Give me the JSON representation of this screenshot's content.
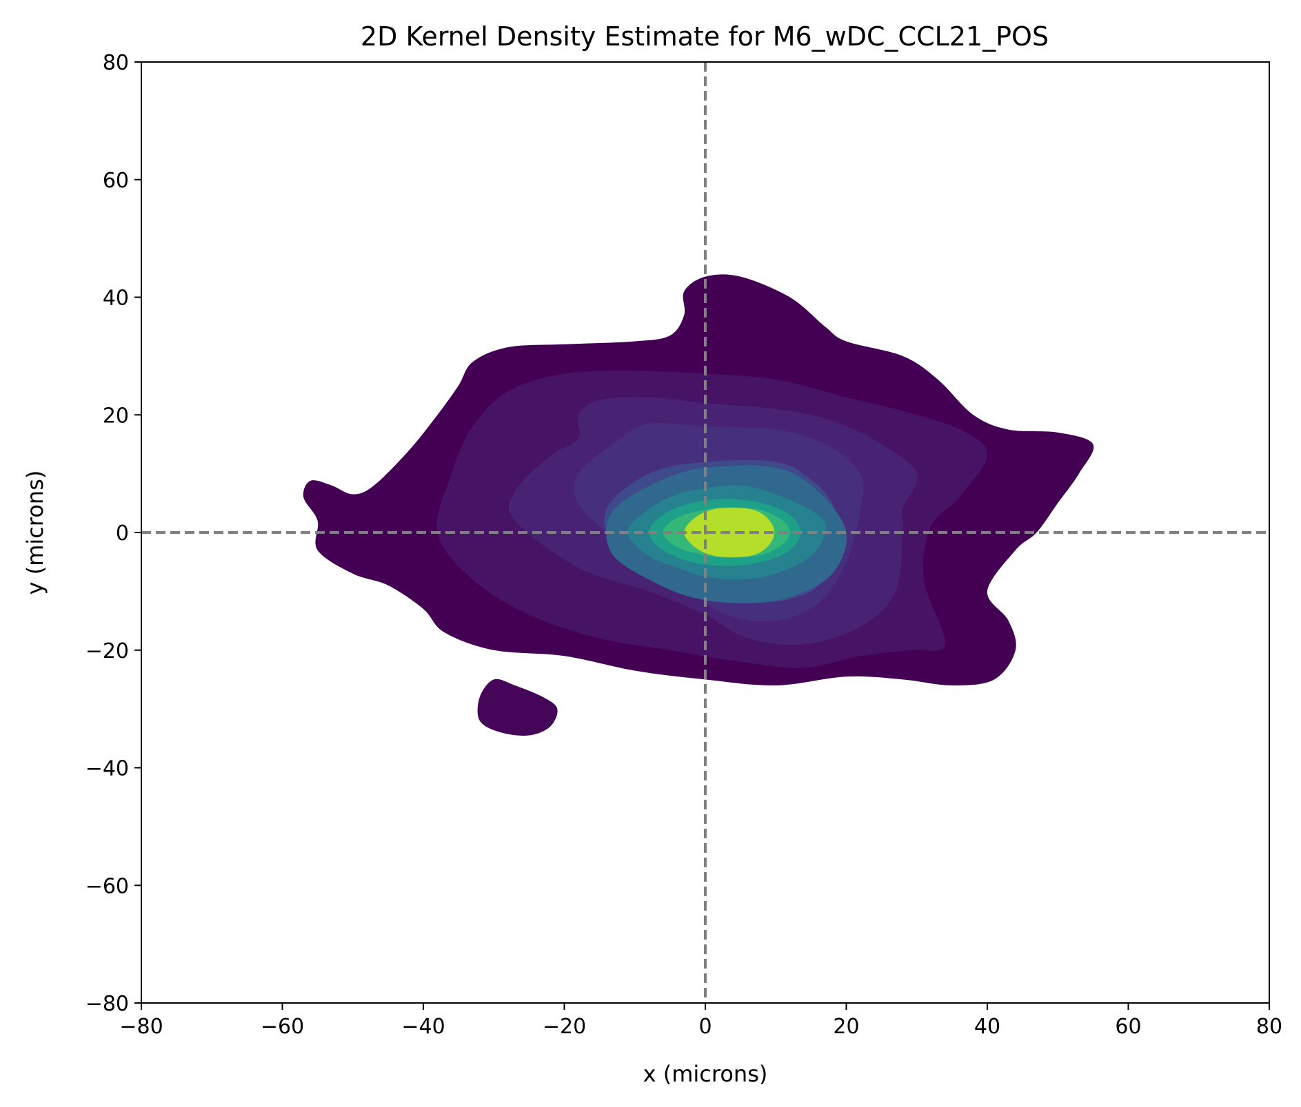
{
  "chart_data": {
    "type": "contour",
    "title": "2D Kernel Density Estimate for M6_wDC_CCL21_POS",
    "xlabel": "x (microns)",
    "ylabel": "y (microns)",
    "xlim": [
      -80,
      80
    ],
    "ylim": [
      -80,
      80
    ],
    "xticks": [
      -80,
      -60,
      -40,
      -20,
      0,
      20,
      40,
      60,
      80
    ],
    "yticks": [
      -80,
      -60,
      -40,
      -20,
      0,
      20,
      40,
      60,
      80
    ],
    "xtick_labels": [
      "−80",
      "−60",
      "−40",
      "−20",
      "0",
      "20",
      "40",
      "60",
      "80"
    ],
    "ytick_labels": [
      "−80",
      "−60",
      "−40",
      "−20",
      "0",
      "20",
      "40",
      "60",
      "80"
    ],
    "grid": false,
    "colormap": "viridis",
    "reference_lines": [
      {
        "orientation": "vertical",
        "value": 0,
        "style": "dashed",
        "color": "#808080"
      },
      {
        "orientation": "horizontal",
        "value": 0,
        "style": "dashed",
        "color": "#808080"
      }
    ],
    "levels": [
      {
        "color": "#440154",
        "points": [
          [
            -56,
            8.8
          ],
          [
            -53,
            8
          ],
          [
            -50,
            6.5
          ],
          [
            -47,
            8
          ],
          [
            -42,
            14
          ],
          [
            -38,
            20
          ],
          [
            -35,
            25
          ],
          [
            -33,
            29
          ],
          [
            -28,
            31.5
          ],
          [
            -20,
            32
          ],
          [
            -10,
            32.5
          ],
          [
            -5,
            33.5
          ],
          [
            -3,
            37
          ],
          [
            -3,
            41
          ],
          [
            0,
            43.5
          ],
          [
            5,
            43.5
          ],
          [
            12,
            40
          ],
          [
            17,
            35
          ],
          [
            20,
            32.5
          ],
          [
            28,
            30
          ],
          [
            33,
            26
          ],
          [
            38,
            20
          ],
          [
            43,
            17.5
          ],
          [
            50,
            17
          ],
          [
            55,
            15
          ],
          [
            53,
            10
          ],
          [
            50,
            5
          ],
          [
            47,
            0
          ],
          [
            44,
            -3
          ],
          [
            40,
            -10
          ],
          [
            43,
            -15
          ],
          [
            44,
            -20
          ],
          [
            41,
            -25
          ],
          [
            35,
            -26
          ],
          [
            28,
            -25
          ],
          [
            20,
            -24.5
          ],
          [
            10,
            -26
          ],
          [
            0,
            -25
          ],
          [
            -10,
            -23.5
          ],
          [
            -20,
            -21
          ],
          [
            -30,
            -20
          ],
          [
            -37,
            -17
          ],
          [
            -40,
            -13
          ],
          [
            -45,
            -9
          ],
          [
            -50,
            -7
          ],
          [
            -55,
            -3
          ],
          [
            -55,
            2
          ],
          [
            -57,
            6
          ],
          [
            -56,
            8.8
          ]
        ]
      },
      {
        "color": "#450558",
        "points": [
          [
            -30,
            -25
          ],
          [
            -27,
            -26
          ],
          [
            -23,
            -28
          ],
          [
            -21,
            -30
          ],
          [
            -22,
            -33
          ],
          [
            -25,
            -34.5
          ],
          [
            -29,
            -34
          ],
          [
            -32,
            -32
          ],
          [
            -32,
            -28
          ],
          [
            -30,
            -25
          ]
        ]
      },
      {
        "color": "#471365",
        "points": [
          [
            -38,
            0
          ],
          [
            -36,
            10
          ],
          [
            -33,
            18
          ],
          [
            -28,
            24
          ],
          [
            -20,
            27
          ],
          [
            -10,
            27.5
          ],
          [
            0,
            27
          ],
          [
            10,
            26
          ],
          [
            20,
            23
          ],
          [
            30,
            20
          ],
          [
            37,
            17
          ],
          [
            40,
            13
          ],
          [
            36,
            6
          ],
          [
            32,
            1
          ],
          [
            31,
            -8
          ],
          [
            34,
            -19
          ],
          [
            29,
            -20
          ],
          [
            22,
            -21
          ],
          [
            14,
            -23
          ],
          [
            5,
            -22
          ],
          [
            -5,
            -20
          ],
          [
            -15,
            -18
          ],
          [
            -25,
            -14
          ],
          [
            -33,
            -8
          ],
          [
            -38,
            0
          ]
        ]
      },
      {
        "color": "#482374",
        "points": [
          [
            -27,
            7
          ],
          [
            -22,
            13
          ],
          [
            -18,
            16
          ],
          [
            -18,
            20
          ],
          [
            -15,
            22.5
          ],
          [
            -8,
            23
          ],
          [
            0,
            22
          ],
          [
            10,
            21
          ],
          [
            18,
            19
          ],
          [
            25,
            15
          ],
          [
            30,
            10
          ],
          [
            28,
            4
          ],
          [
            28,
            0
          ],
          [
            27,
            -10
          ],
          [
            22,
            -16
          ],
          [
            14,
            -19
          ],
          [
            6,
            -18
          ],
          [
            0,
            -14
          ],
          [
            -8,
            -10
          ],
          [
            -18,
            -6
          ],
          [
            -27,
            2
          ],
          [
            -27,
            7
          ]
        ]
      },
      {
        "color": "#46307e",
        "points": [
          [
            -18,
            10
          ],
          [
            -12,
            16
          ],
          [
            -8,
            18.5
          ],
          [
            0,
            18
          ],
          [
            10,
            17.5
          ],
          [
            17,
            15
          ],
          [
            22,
            10
          ],
          [
            22,
            4
          ],
          [
            20,
            -5
          ],
          [
            16,
            -12
          ],
          [
            10,
            -15
          ],
          [
            3,
            -14
          ],
          [
            -2,
            -10
          ],
          [
            -8,
            -6
          ],
          [
            -14,
            0
          ],
          [
            -18,
            5
          ],
          [
            -18,
            10
          ]
        ]
      },
      {
        "color": "#3e4a89",
        "points": [
          [
            -14,
            4
          ],
          [
            -8,
            10
          ],
          [
            0,
            12
          ],
          [
            10,
            12
          ],
          [
            15,
            9
          ],
          [
            18,
            5
          ],
          [
            19,
            0
          ],
          [
            18,
            -5
          ],
          [
            15,
            -10
          ],
          [
            8,
            -12
          ],
          [
            0,
            -11
          ],
          [
            -8,
            -8
          ],
          [
            -13,
            -3
          ],
          [
            -14,
            4
          ]
        ]
      },
      {
        "color": "#31688e",
        "points": [
          [
            -14,
            1
          ],
          [
            -12,
            5
          ],
          [
            -6,
            9
          ],
          [
            0,
            11
          ],
          [
            10,
            11
          ],
          [
            16,
            7
          ],
          [
            20,
            0
          ],
          [
            18,
            -7
          ],
          [
            12,
            -11
          ],
          [
            5,
            -12
          ],
          [
            -2,
            -11
          ],
          [
            -8,
            -8
          ],
          [
            -13,
            -4
          ],
          [
            -14,
            1
          ]
        ]
      },
      {
        "color": "#26828e",
        "points": [
          [
            -11,
            0
          ],
          [
            -8,
            4
          ],
          [
            -4,
            6.5
          ],
          [
            0,
            7.5
          ],
          [
            5,
            8
          ],
          [
            10,
            6.5
          ],
          [
            16,
            3
          ],
          [
            17,
            0
          ],
          [
            15,
            -4
          ],
          [
            10,
            -7
          ],
          [
            5,
            -8
          ],
          [
            0,
            -7.5
          ],
          [
            -4,
            -6
          ],
          [
            -8,
            -4
          ],
          [
            -11,
            0
          ]
        ]
      },
      {
        "color": "#1fa088",
        "points": [
          [
            -8,
            0
          ],
          [
            -6,
            3
          ],
          [
            -2,
            5
          ],
          [
            3,
            5.7
          ],
          [
            8,
            5
          ],
          [
            12,
            3
          ],
          [
            13.5,
            0
          ],
          [
            12,
            -3
          ],
          [
            8,
            -5
          ],
          [
            3,
            -5.7
          ],
          [
            -2,
            -5
          ],
          [
            -6,
            -3
          ],
          [
            -8,
            0
          ]
        ]
      },
      {
        "color": "#35b779",
        "points": [
          [
            -6,
            0
          ],
          [
            -4,
            2.5
          ],
          [
            0,
            3.9
          ],
          [
            3.5,
            4.3
          ],
          [
            8,
            3.8
          ],
          [
            11,
            2
          ],
          [
            12,
            0
          ],
          [
            11,
            -2
          ],
          [
            8,
            -3.8
          ],
          [
            3.5,
            -4.3
          ],
          [
            0,
            -3.9
          ],
          [
            -4,
            -2.5
          ],
          [
            -6,
            0
          ]
        ]
      },
      {
        "color": "#b5de2b",
        "points": [
          [
            -3,
            0
          ],
          [
            -1.5,
            2.5
          ],
          [
            1,
            3.9
          ],
          [
            4,
            4.2
          ],
          [
            7,
            3.8
          ],
          [
            9,
            2.2
          ],
          [
            9.8,
            0
          ],
          [
            9,
            -2.2
          ],
          [
            7,
            -3.8
          ],
          [
            4,
            -4.2
          ],
          [
            1,
            -3.9
          ],
          [
            -1.5,
            -2.5
          ],
          [
            -3,
            0
          ]
        ]
      }
    ]
  }
}
